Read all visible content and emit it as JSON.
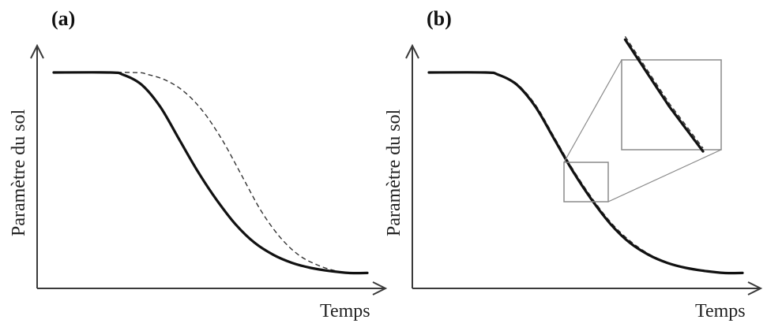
{
  "chart_data": [
    {
      "type": "line",
      "panel_label": "(a)",
      "xlabel": "Temps",
      "ylabel": "Paramètre du sol",
      "series": [
        {
          "style": "solid",
          "points": [
            [
              0.0,
              1.0
            ],
            [
              0.18,
              1.0
            ],
            [
              0.22,
              0.99
            ],
            [
              0.28,
              0.94
            ],
            [
              0.34,
              0.83
            ],
            [
              0.4,
              0.67
            ],
            [
              0.46,
              0.51
            ],
            [
              0.52,
              0.37
            ],
            [
              0.58,
              0.25
            ],
            [
              0.64,
              0.16
            ],
            [
              0.7,
              0.1
            ],
            [
              0.76,
              0.06
            ],
            [
              0.82,
              0.035
            ],
            [
              0.88,
              0.02
            ],
            [
              0.94,
              0.01
            ],
            [
              1.0,
              0.01
            ]
          ]
        },
        {
          "style": "dashed",
          "points": [
            [
              0.0,
              1.0
            ],
            [
              0.25,
              1.0
            ],
            [
              0.3,
              0.99
            ],
            [
              0.36,
              0.96
            ],
            [
              0.42,
              0.9
            ],
            [
              0.48,
              0.8
            ],
            [
              0.54,
              0.66
            ],
            [
              0.6,
              0.49
            ],
            [
              0.66,
              0.32
            ],
            [
              0.72,
              0.19
            ],
            [
              0.78,
              0.1
            ],
            [
              0.84,
              0.05
            ],
            [
              0.9,
              0.02
            ],
            [
              0.95,
              0.01
            ],
            [
              1.0,
              0.01
            ]
          ]
        }
      ]
    },
    {
      "type": "line",
      "panel_label": "(b)",
      "xlabel": "Temps",
      "ylabel": "Paramètre du sol",
      "series": [
        {
          "style": "solid",
          "points": [
            [
              0.0,
              1.0
            ],
            [
              0.18,
              1.0
            ],
            [
              0.22,
              0.99
            ],
            [
              0.28,
              0.94
            ],
            [
              0.34,
              0.83
            ],
            [
              0.4,
              0.67
            ],
            [
              0.46,
              0.51
            ],
            [
              0.52,
              0.37
            ],
            [
              0.58,
              0.25
            ],
            [
              0.64,
              0.16
            ],
            [
              0.7,
              0.1
            ],
            [
              0.76,
              0.06
            ],
            [
              0.82,
              0.035
            ],
            [
              0.88,
              0.02
            ],
            [
              0.94,
              0.01
            ],
            [
              1.0,
              0.01
            ]
          ]
        },
        {
          "style": "dashed",
          "points": [
            [
              0.0,
              1.0
            ],
            [
              0.18,
              1.0
            ],
            [
              0.22,
              0.99
            ],
            [
              0.28,
              0.945
            ],
            [
              0.34,
              0.84
            ],
            [
              0.4,
              0.68
            ],
            [
              0.46,
              0.52
            ],
            [
              0.52,
              0.38
            ],
            [
              0.58,
              0.26
            ],
            [
              0.64,
              0.17
            ],
            [
              0.7,
              0.105
            ],
            [
              0.76,
              0.063
            ],
            [
              0.82,
              0.037
            ],
            [
              0.88,
              0.021
            ],
            [
              0.94,
              0.011
            ],
            [
              1.0,
              0.01
            ]
          ]
        }
      ],
      "inset": {
        "zoom_region": {
          "x": [
            0.38,
            0.52
          ],
          "y": [
            0.38,
            0.65
          ]
        }
      }
    }
  ]
}
